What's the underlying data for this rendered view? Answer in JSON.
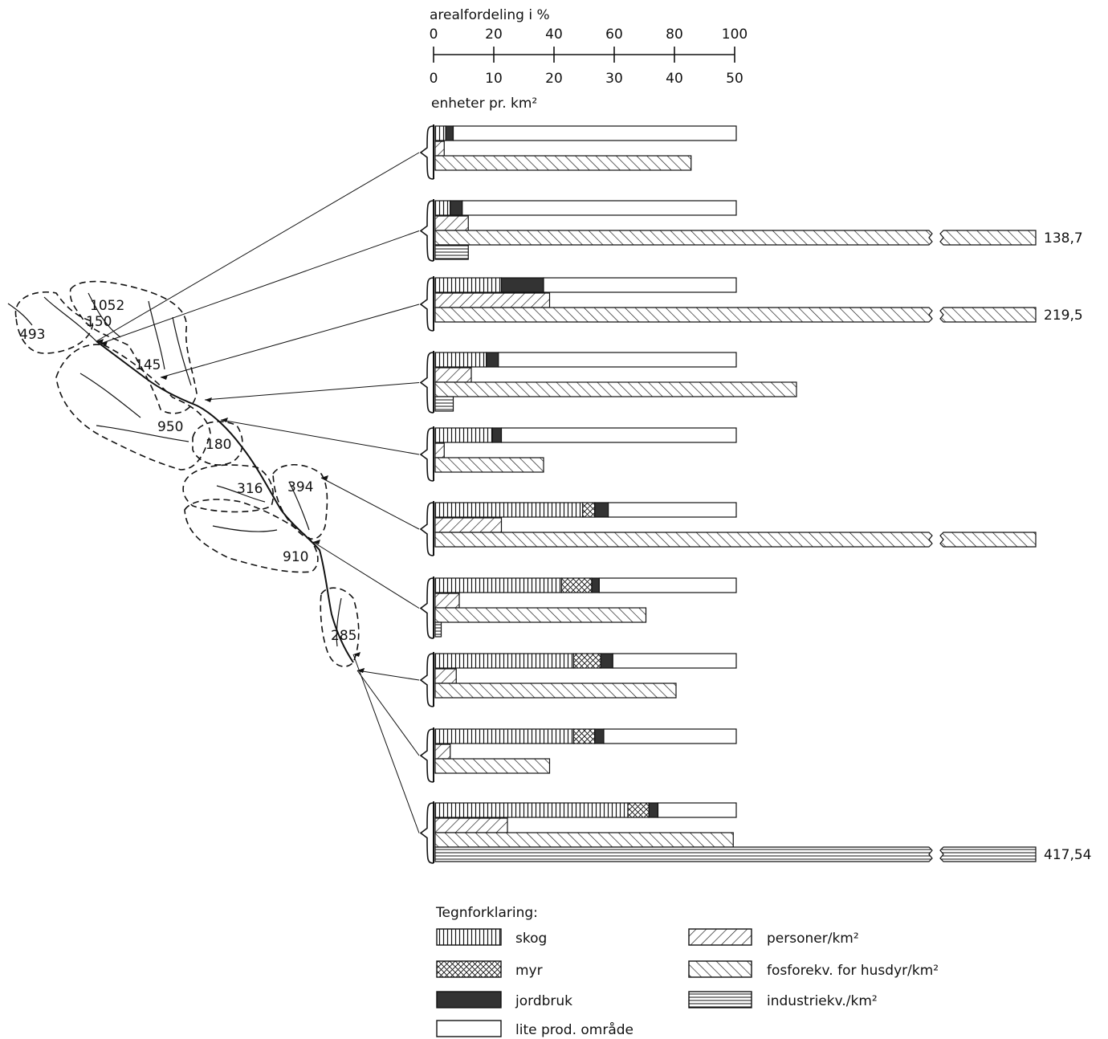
{
  "chart_data": {
    "type": "bar",
    "scale_top": {
      "label": "arealfordeling  i %",
      "ticks": [
        "0",
        "20",
        "40",
        "60",
        "80",
        "100"
      ],
      "range": [
        0,
        100
      ]
    },
    "scale_bottom": {
      "label": "enheter  pr. km²",
      "ticks": [
        "0",
        "10",
        "20",
        "30",
        "40",
        "50"
      ],
      "range": [
        0,
        50
      ]
    },
    "map_labels": [
      "493",
      "1052",
      "150",
      "145",
      "950",
      "180",
      "316",
      "394",
      "910",
      "285"
    ],
    "series": [
      {
        "name": "skog",
        "unit": "%"
      },
      {
        "name": "myr",
        "unit": "%"
      },
      {
        "name": "jordbruk",
        "unit": "%"
      },
      {
        "name": "lite prod. område",
        "unit": "%"
      },
      {
        "name": "personer/km²",
        "unit": "enheter pr. km²"
      },
      {
        "name": "fosforekv. for husdyr/km²",
        "unit": "enheter pr. km²"
      },
      {
        "name": "industriekv./km²",
        "unit": "enheter pr. km²"
      }
    ],
    "groups": [
      {
        "map_label": "1052",
        "skog": 3.5,
        "myr": 0,
        "jordbruk": 2.5,
        "lite_prod": 94,
        "personer": 1.5,
        "fosfor": 42.5,
        "industri": 0,
        "value_label": ""
      },
      {
        "map_label": "150",
        "skog": 5,
        "myr": 0,
        "jordbruk": 4,
        "lite_prod": 91,
        "personer": 5.5,
        "fosfor": 138.7,
        "industri": 5.5,
        "value_label": "138,7"
      },
      {
        "map_label": "145",
        "skog": 22,
        "myr": 0,
        "jordbruk": 14,
        "lite_prod": 64,
        "personer": 19,
        "fosfor": 219.5,
        "industri": 0,
        "value_label": "219,5"
      },
      {
        "map_label": "950",
        "skog": 17,
        "myr": 0,
        "jordbruk": 4,
        "lite_prod": 79,
        "personer": 6,
        "fosfor": 60,
        "industri": 3,
        "value_label": ""
      },
      {
        "map_label": "180",
        "skog": 19,
        "myr": 0,
        "jordbruk": 3,
        "lite_prod": 78,
        "personer": 1.5,
        "fosfor": 18,
        "industri": 0,
        "value_label": ""
      },
      {
        "map_label": "394",
        "skog": 49,
        "myr": 4,
        "jordbruk": 4.5,
        "lite_prod": 42.5,
        "personer": 11,
        "fosfor": 101,
        "industri": 0,
        "value_label": ""
      },
      {
        "map_label": "910",
        "skog": 42,
        "myr": 10,
        "jordbruk": 2.5,
        "lite_prod": 45.5,
        "personer": 4,
        "fosfor": 35,
        "industri": 1,
        "value_label": ""
      },
      {
        "map_label": "316",
        "skog": 46,
        "myr": 9,
        "jordbruk": 4,
        "lite_prod": 41,
        "personer": 3.5,
        "fosfor": 40,
        "industri": 0,
        "value_label": ""
      },
      {
        "map_label": "316",
        "skog": 46,
        "myr": 7,
        "jordbruk": 3,
        "lite_prod": 44,
        "personer": 2.5,
        "fosfor": 19,
        "industri": 0,
        "value_label": ""
      },
      {
        "map_label": "285",
        "skog": 64,
        "myr": 7,
        "jordbruk": 3,
        "lite_prod": 26,
        "personer": 12,
        "fosfor": 49.5,
        "industri": 417.54,
        "value_label": "417,54"
      }
    ],
    "legend": {
      "title": "Tegnforklaring:",
      "items": [
        {
          "label": "skog",
          "pattern": "vlines"
        },
        {
          "label": "personer/km²",
          "pattern": "hatch-forward"
        },
        {
          "label": "myr",
          "pattern": "crosshatch"
        },
        {
          "label": "fosforekv. for husdyr/km²",
          "pattern": "hatch-back"
        },
        {
          "label": "jordbruk",
          "pattern": "solid-dark"
        },
        {
          "label": "industriekv./km²",
          "pattern": "hlines"
        },
        {
          "label": "lite prod. område",
          "pattern": "empty"
        }
      ],
      "placement": "bottom"
    },
    "colors": {
      "ink": "#111111",
      "jordbruk": "#333333",
      "background": "#ffffff"
    }
  }
}
